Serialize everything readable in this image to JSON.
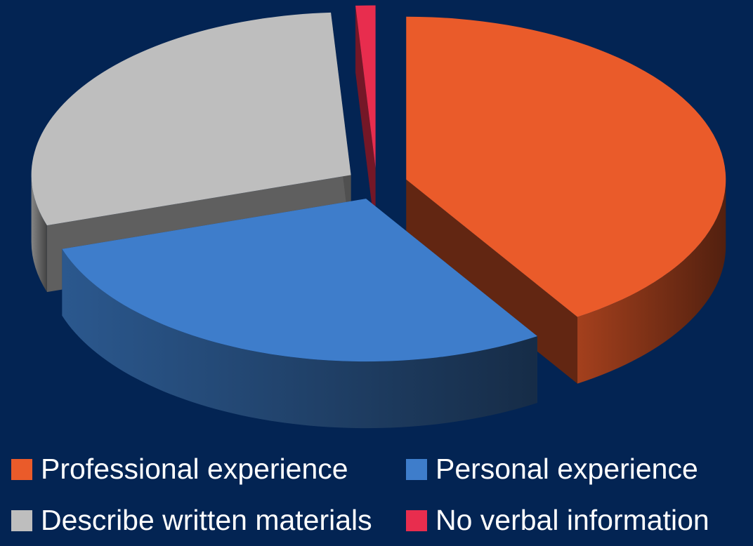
{
  "chart_data": {
    "type": "pie",
    "title": "",
    "categories": [
      "Professional experience",
      "Personal experience",
      "Describe written materials",
      "No verbal information"
    ],
    "values": [
      41,
      29,
      29,
      1
    ],
    "value_unit": "percent",
    "colors": [
      "#EA5B2A",
      "#3E7DCB",
      "#BEBEBE",
      "#E82D4E"
    ],
    "style": "3d-exploded",
    "legend_placement": "bottom"
  },
  "background": "#032453"
}
